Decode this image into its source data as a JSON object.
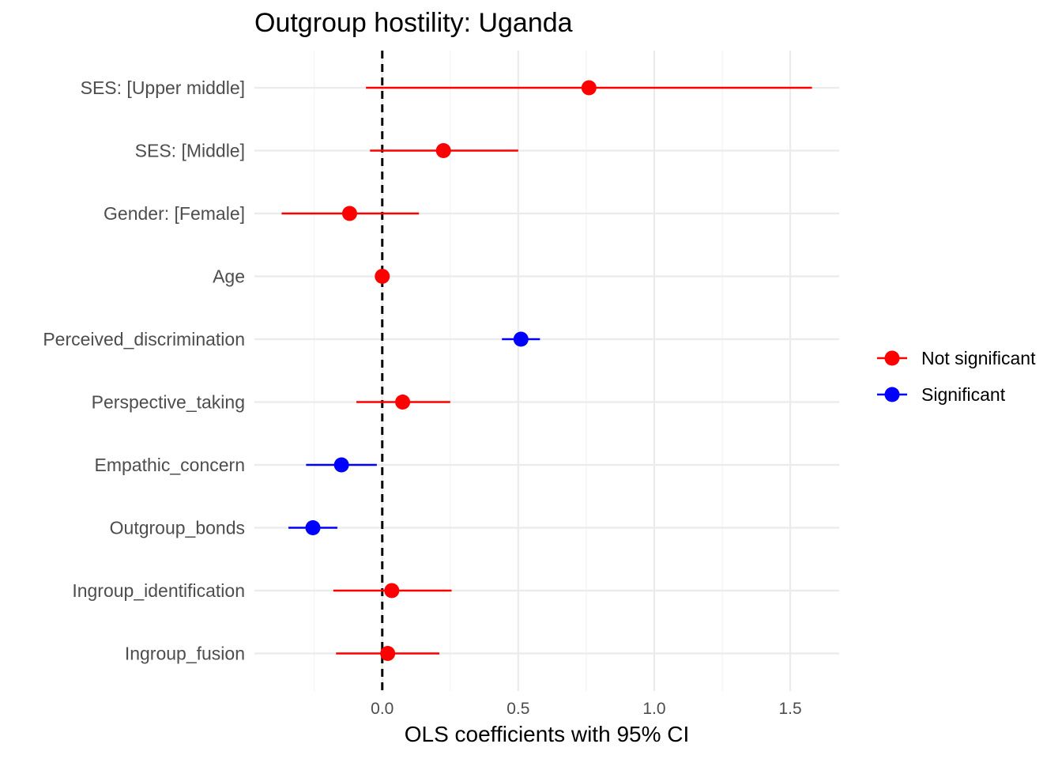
{
  "chart_data": {
    "type": "scatter",
    "subtype": "coefficient-plot",
    "title": "Outgroup hostility: Uganda",
    "xlabel": "OLS coefficients with 95% CI",
    "ylabel": "",
    "xlim": [
      -0.47,
      1.68
    ],
    "x_ticks": [
      "0.0",
      "0.5",
      "1.0",
      "1.5"
    ],
    "x_tick_values": [
      0,
      0.5,
      1.0,
      1.5
    ],
    "reference_line": 0,
    "grid": true,
    "legend_position": "right",
    "colors": {
      "Not significant": "#ff0000",
      "Significant": "#0000ff"
    },
    "legend": [
      "Not significant",
      "Significant"
    ],
    "terms": [
      {
        "label": "SES:  [Upper middle]",
        "estimate": 0.76,
        "low": -0.06,
        "high": 1.58,
        "group": "Not significant"
      },
      {
        "label": "SES:  [Middle]",
        "estimate": 0.225,
        "low": -0.045,
        "high": 0.5,
        "group": "Not significant"
      },
      {
        "label": "Gender:  [Female]",
        "estimate": -0.12,
        "low": -0.37,
        "high": 0.135,
        "group": "Not significant"
      },
      {
        "label": "Age",
        "estimate": 0.0,
        "low": -0.005,
        "high": 0.005,
        "group": "Not significant"
      },
      {
        "label": "Perceived_discrimination",
        "estimate": 0.51,
        "low": 0.44,
        "high": 0.58,
        "group": "Significant"
      },
      {
        "label": "Perspective_taking",
        "estimate": 0.075,
        "low": -0.095,
        "high": 0.25,
        "group": "Not significant"
      },
      {
        "label": "Empathic_concern",
        "estimate": -0.15,
        "low": -0.28,
        "high": -0.02,
        "group": "Significant"
      },
      {
        "label": "Outgroup_bonds",
        "estimate": -0.255,
        "low": -0.345,
        "high": -0.165,
        "group": "Significant"
      },
      {
        "label": "Ingroup_identification",
        "estimate": 0.035,
        "low": -0.18,
        "high": 0.255,
        "group": "Not significant"
      },
      {
        "label": "Ingroup_fusion",
        "estimate": 0.02,
        "low": -0.17,
        "high": 0.21,
        "group": "Not significant"
      }
    ]
  }
}
